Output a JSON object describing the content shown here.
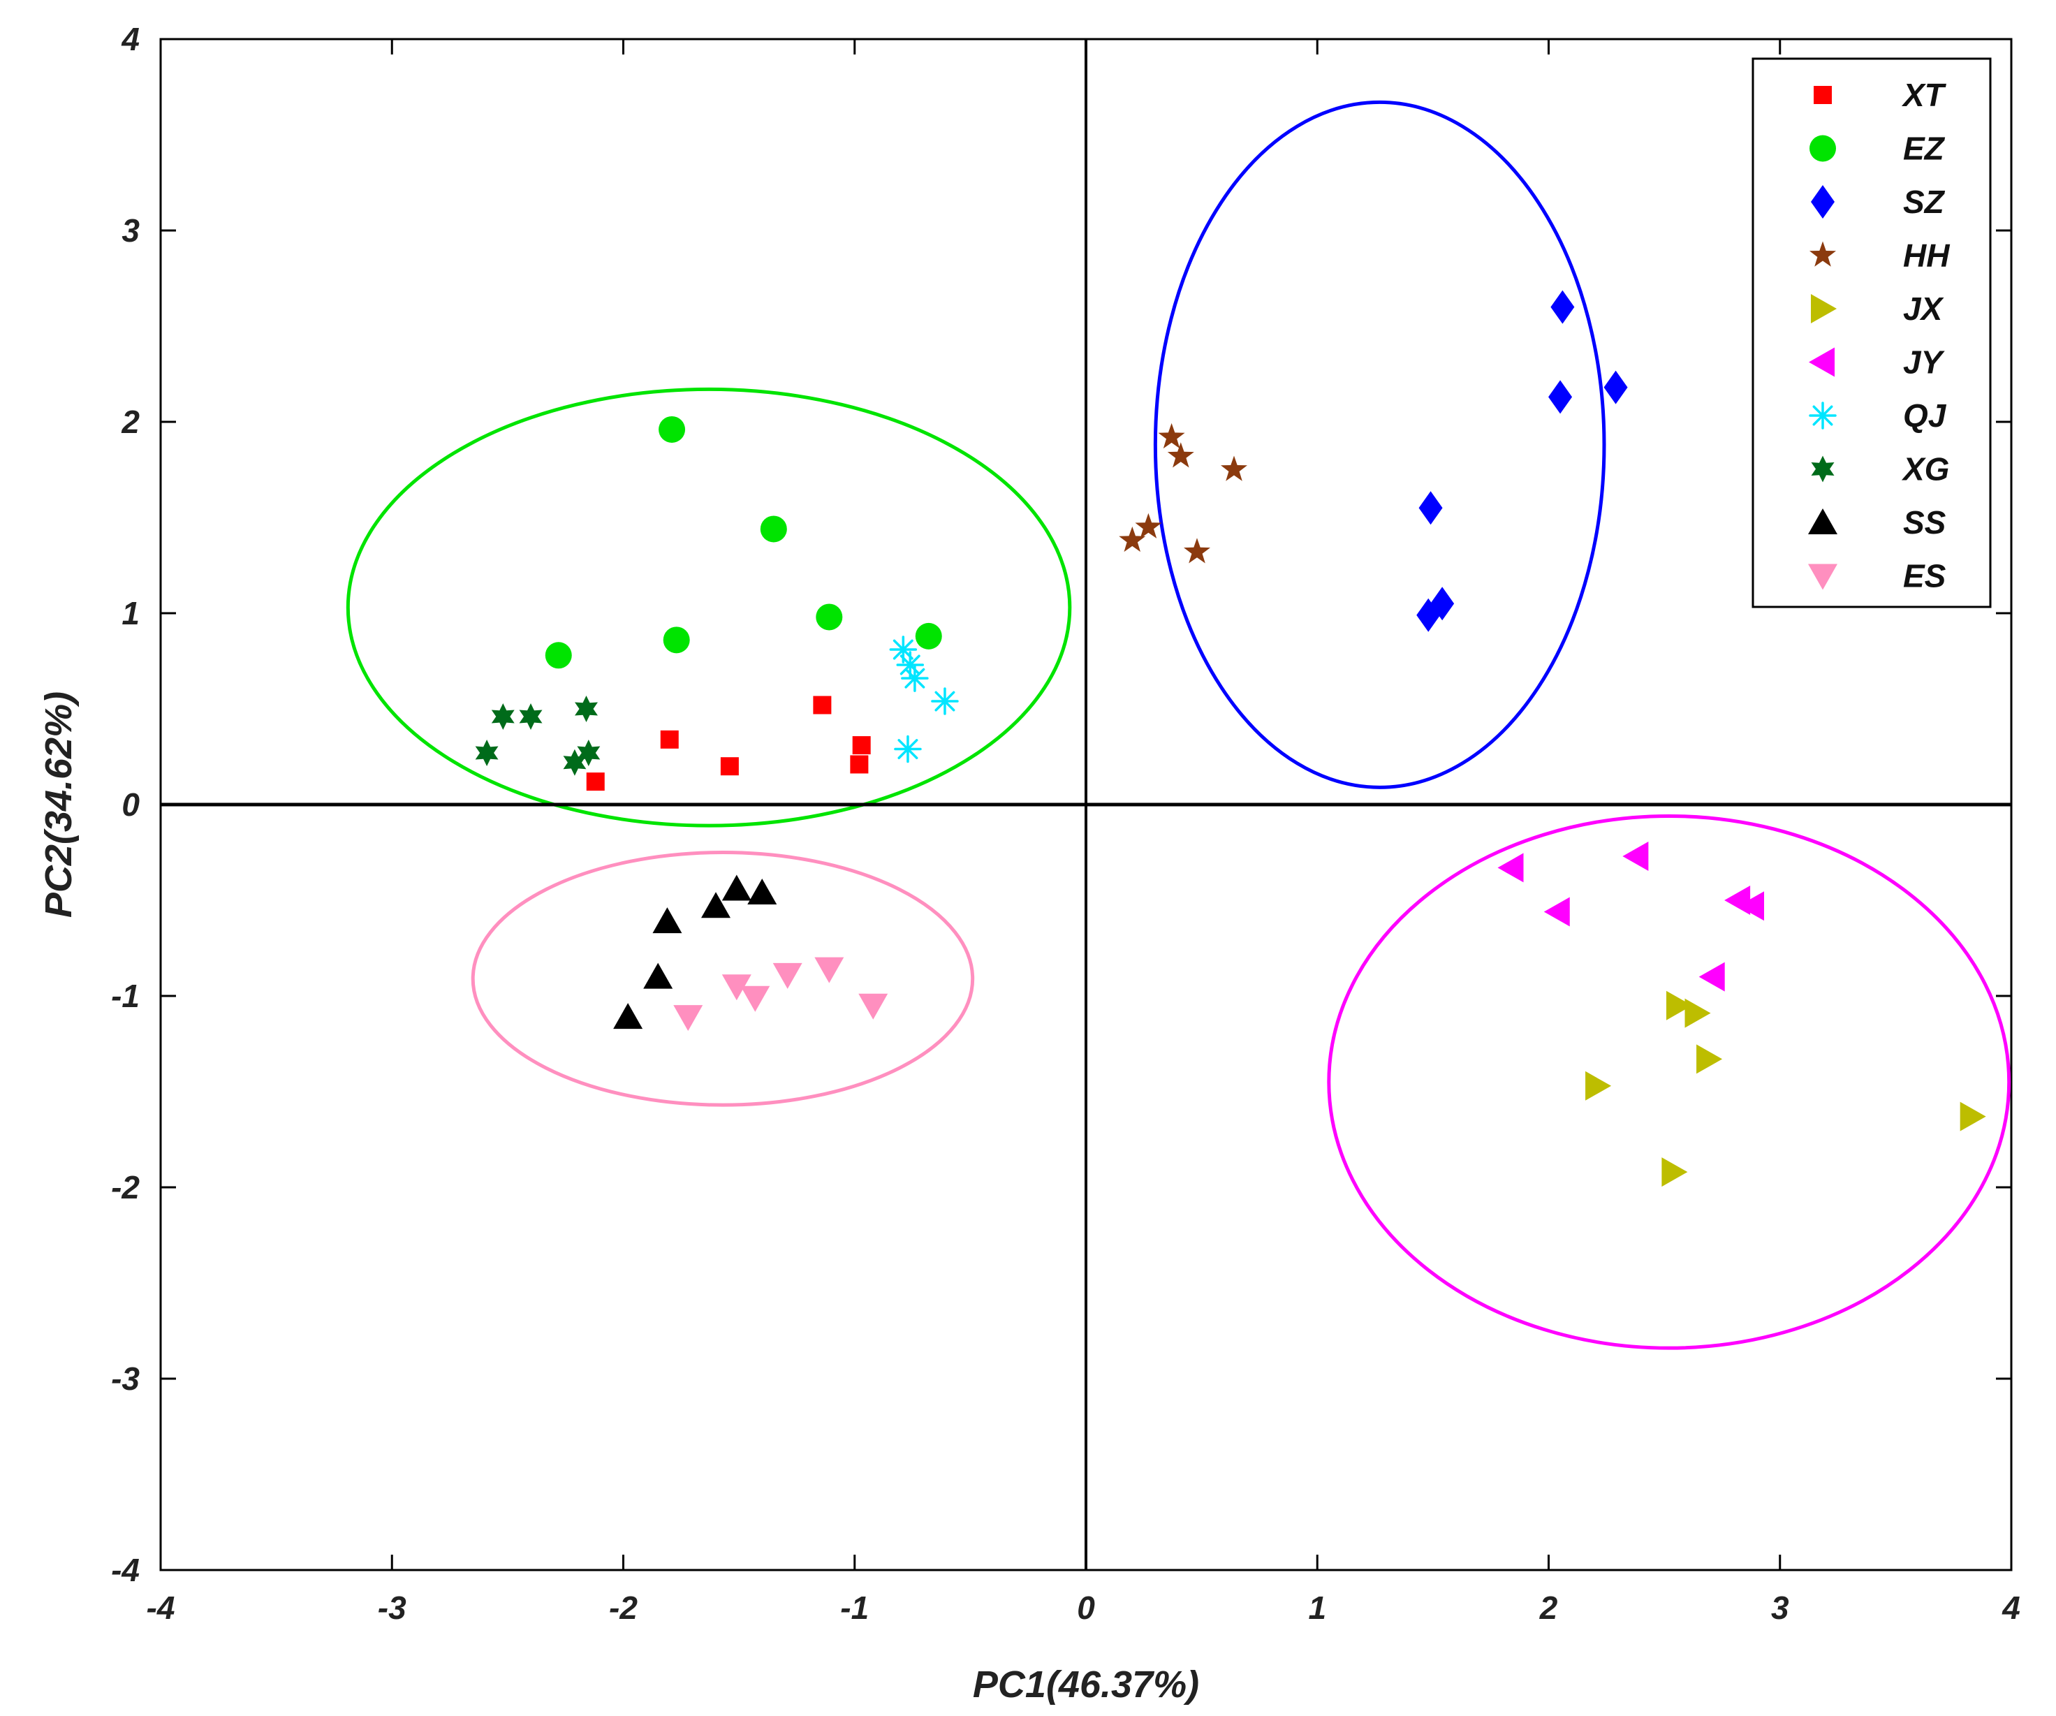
{
  "chart_data": {
    "type": "scatter",
    "xlabel": "PC1(46.37%)",
    "ylabel": "PC2(34.62%)",
    "xlim": [
      -4,
      4
    ],
    "ylim": [
      -4,
      4
    ],
    "xticks": [
      "-4",
      "-3",
      "-2",
      "-1",
      "0",
      "1",
      "2",
      "3",
      "4"
    ],
    "yticks": [
      "-4",
      "-3",
      "-2",
      "-1",
      "0",
      "1",
      "2",
      "3",
      "4"
    ],
    "legend_position": "top-right",
    "series": [
      {
        "name": "XT",
        "marker": "square",
        "color": "#ff0000",
        "points": [
          [
            -2.12,
            0.12
          ],
          [
            -1.8,
            0.34
          ],
          [
            -1.54,
            0.2
          ],
          [
            -1.14,
            0.52
          ],
          [
            -0.97,
            0.31
          ],
          [
            -0.98,
            0.21
          ]
        ]
      },
      {
        "name": "EZ",
        "marker": "circle",
        "color": "#00e400",
        "points": [
          [
            -1.79,
            1.96
          ],
          [
            -1.35,
            1.44
          ],
          [
            -1.11,
            0.98
          ],
          [
            -0.68,
            0.88
          ],
          [
            -1.77,
            0.86
          ],
          [
            -2.28,
            0.78
          ]
        ]
      },
      {
        "name": "SZ",
        "marker": "diamond",
        "color": "#0000ff",
        "points": [
          [
            2.06,
            2.6
          ],
          [
            2.05,
            2.13
          ],
          [
            2.29,
            2.18
          ],
          [
            1.49,
            1.55
          ],
          [
            1.54,
            1.05
          ],
          [
            1.48,
            0.99
          ]
        ]
      },
      {
        "name": "HH",
        "marker": "star5",
        "color": "#8b3a0e",
        "points": [
          [
            0.37,
            1.92
          ],
          [
            0.41,
            1.82
          ],
          [
            0.64,
            1.75
          ],
          [
            0.2,
            1.38
          ],
          [
            0.27,
            1.45
          ],
          [
            0.48,
            1.32
          ]
        ]
      },
      {
        "name": "JX",
        "marker": "triangle-right",
        "color": "#bdbd00",
        "points": [
          [
            2.56,
            -1.05
          ],
          [
            2.64,
            -1.09
          ],
          [
            2.69,
            -1.33
          ],
          [
            2.21,
            -1.47
          ],
          [
            3.83,
            -1.63
          ],
          [
            2.54,
            -1.92
          ]
        ]
      },
      {
        "name": "JY",
        "marker": "triangle-left",
        "color": "#ff00ff",
        "points": [
          [
            1.84,
            -0.33
          ],
          [
            2.38,
            -0.27
          ],
          [
            2.04,
            -0.56
          ],
          [
            2.82,
            -0.5
          ],
          [
            2.88,
            -0.53
          ],
          [
            2.71,
            -0.9
          ]
        ]
      },
      {
        "name": "QJ",
        "marker": "asterisk",
        "color": "#00e5ff",
        "points": [
          [
            -0.79,
            0.81
          ],
          [
            -0.76,
            0.73
          ],
          [
            -0.74,
            0.66
          ],
          [
            -0.61,
            0.54
          ],
          [
            -0.77,
            0.29
          ]
        ]
      },
      {
        "name": "XG",
        "marker": "star6",
        "color": "#006b1a",
        "points": [
          [
            -2.59,
            0.27
          ],
          [
            -2.52,
            0.46
          ],
          [
            -2.4,
            0.46
          ],
          [
            -2.16,
            0.5
          ],
          [
            -2.21,
            0.22
          ],
          [
            -2.15,
            0.27
          ]
        ]
      },
      {
        "name": "SS",
        "marker": "triangle-up",
        "color": "#000000",
        "points": [
          [
            -1.81,
            -0.61
          ],
          [
            -1.6,
            -0.53
          ],
          [
            -1.51,
            -0.44
          ],
          [
            -1.4,
            -0.46
          ],
          [
            -1.85,
            -0.9
          ],
          [
            -1.98,
            -1.11
          ]
        ]
      },
      {
        "name": "ES",
        "marker": "triangle-down",
        "color": "#ff8fbf",
        "points": [
          [
            -1.51,
            -0.95
          ],
          [
            -1.43,
            -1.01
          ],
          [
            -1.29,
            -0.89
          ],
          [
            -1.11,
            -0.86
          ],
          [
            -0.92,
            -1.05
          ],
          [
            -1.72,
            -1.11
          ]
        ]
      }
    ],
    "ellipses": [
      {
        "color": "#00e400",
        "center": [
          -1.63,
          1.03
        ],
        "rx": 1.56,
        "ry": 1.14
      },
      {
        "color": "#0000ff",
        "center": [
          1.27,
          1.88
        ],
        "rx": 0.97,
        "ry": 1.79
      },
      {
        "color": "#ff8fbf",
        "center": [
          -1.57,
          -0.91
        ],
        "rx": 1.08,
        "ry": 0.66
      },
      {
        "color": "#ff00ff",
        "center": [
          2.52,
          -1.45
        ],
        "rx": 1.47,
        "ry": 1.39
      }
    ]
  }
}
